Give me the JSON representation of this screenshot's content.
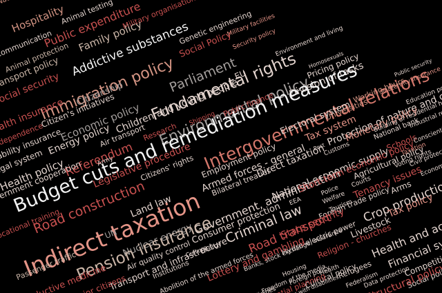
{
  "palette": {
    "background": "#000000",
    "white": "#f2f2f2",
    "light": "#e3d4ce",
    "beige": "#cbb6a8",
    "rose": "#d39483",
    "salmon": "#e49487",
    "coral": "#d2766a",
    "crimson": "#c7504f",
    "red": "#b8403f",
    "grey": "#a39e9c",
    "dim": "#8d7f7b"
  },
  "words": [
    {
      "text": "National organisations",
      "tone": "rose"
    },
    {
      "text": "Hospitality",
      "tone": "rose"
    },
    {
      "text": "Animal testing",
      "tone": "light"
    },
    {
      "text": "Public expenditure",
      "tone": "crimson"
    },
    {
      "text": "Military organisation",
      "tone": "crimson"
    },
    {
      "text": "Family policy",
      "tone": "beige"
    },
    {
      "text": "Communication",
      "tone": "light"
    },
    {
      "text": "Genetic engineering",
      "tone": "light"
    },
    {
      "text": "Military facilities",
      "tone": "salmon"
    },
    {
      "text": "Addictive substances",
      "tone": "white"
    },
    {
      "text": "Social Policy",
      "tone": "crimson"
    },
    {
      "text": "Security policy",
      "tone": "salmon"
    },
    {
      "text": "Animal protection",
      "tone": "beige"
    },
    {
      "text": "Environment and living",
      "tone": "light"
    },
    {
      "text": "Homosexuals",
      "tone": "light"
    },
    {
      "text": "Transport policy",
      "tone": "beige"
    },
    {
      "text": "Immigration policy",
      "tone": "rose"
    },
    {
      "text": "Parliament",
      "tone": "grey"
    },
    {
      "text": "Fundamental rights",
      "tone": "light"
    },
    {
      "text": "Pricing policy",
      "tone": "light"
    },
    {
      "text": "Social security",
      "tone": "crimson"
    },
    {
      "text": "Citizenship",
      "tone": "grey"
    },
    {
      "text": "EU",
      "tone": "light"
    },
    {
      "text": "Division of tasks",
      "tone": "light"
    },
    {
      "text": "Health insurance",
      "tone": "crimson"
    },
    {
      "text": "Public security",
      "tone": "light"
    },
    {
      "text": "Citizen's initiatives",
      "tone": "light"
    },
    {
      "text": "Children and young people",
      "tone": "light"
    },
    {
      "text": "Environmental policy",
      "tone": "grey"
    },
    {
      "text": "Intergovernmental relations",
      "tone": "coral"
    },
    {
      "text": "Maternity insurance",
      "tone": "salmon"
    },
    {
      "text": "Independence",
      "tone": "crimson"
    },
    {
      "text": "Economic policy",
      "tone": "grey"
    },
    {
      "text": "Public finance",
      "tone": "crimson"
    },
    {
      "text": "Working hours",
      "tone": "rose"
    },
    {
      "text": "Protection of nature and cultural heritage",
      "tone": "light"
    },
    {
      "text": "Disability insurance",
      "tone": "light"
    },
    {
      "text": "Energy policy",
      "tone": "light"
    },
    {
      "text": "Shipping",
      "tone": "crimson"
    },
    {
      "text": "Universities",
      "tone": "rose"
    },
    {
      "text": "Education policy",
      "tone": "light"
    },
    {
      "text": "Legal system",
      "tone": "light"
    },
    {
      "text": "Air transport",
      "tone": "light"
    },
    {
      "text": "Budget cuts and remediation measures",
      "tone": "white"
    },
    {
      "text": "Electoral system",
      "tone": "light"
    },
    {
      "text": "Tax system",
      "tone": "salmon"
    },
    {
      "text": "Monetary policy",
      "tone": "salmon"
    },
    {
      "text": "Building of residential housing",
      "tone": "light"
    },
    {
      "text": "Health policy",
      "tone": "light"
    },
    {
      "text": "Referendum",
      "tone": "crimson"
    },
    {
      "text": "Research",
      "tone": "crimson"
    },
    {
      "text": "Army",
      "tone": "light"
    },
    {
      "text": "National bank",
      "tone": "light"
    },
    {
      "text": "Industrial relations",
      "tone": "light"
    },
    {
      "text": "Employment policy",
      "tone": "light"
    },
    {
      "text": "Post",
      "tone": "light"
    },
    {
      "text": "Schools",
      "tone": "crimson"
    },
    {
      "text": "Conscientious objection",
      "tone": "light"
    },
    {
      "text": "Government cooperation",
      "tone": "light"
    },
    {
      "text": "Legislative procedure",
      "tone": "crimson"
    },
    {
      "text": "Armed forces - general",
      "tone": "light"
    },
    {
      "text": "Customs",
      "tone": "light"
    },
    {
      "text": "Taxation",
      "tone": "salmon"
    },
    {
      "text": "Civil protection",
      "tone": "light"
    },
    {
      "text": "Citizens' rights",
      "tone": "light"
    },
    {
      "text": "Direct taxation",
      "tone": "light"
    },
    {
      "text": "National economic supply",
      "tone": "light"
    },
    {
      "text": "Voting rights",
      "tone": "light"
    },
    {
      "text": "Road construction",
      "tone": "crimson"
    },
    {
      "text": "Bilateral treaties",
      "tone": "light"
    },
    {
      "text": "Agricultural policy",
      "tone": "light"
    },
    {
      "text": "Economics",
      "tone": "light"
    },
    {
      "text": "Land law",
      "tone": "light"
    },
    {
      "text": "Government, administration",
      "tone": "light"
    },
    {
      "text": "Short-term economic policy",
      "tone": "crimson"
    },
    {
      "text": "Consumer protection",
      "tone": "light"
    },
    {
      "text": "Police",
      "tone": "light"
    },
    {
      "text": "Tenancy issues",
      "tone": "crimson"
    },
    {
      "text": "Vocational training",
      "tone": "crimson"
    },
    {
      "text": "Indirect taxation",
      "tone": "salmon"
    },
    {
      "text": "Courts",
      "tone": "light"
    },
    {
      "text": "Arms",
      "tone": "light"
    },
    {
      "text": "UN",
      "tone": "grey"
    },
    {
      "text": "EEA",
      "tone": "light"
    },
    {
      "text": "Welfare",
      "tone": "light"
    },
    {
      "text": "Crop production",
      "tone": "light"
    },
    {
      "text": "Tax policy",
      "tone": "salmon"
    },
    {
      "text": "Nuclear energy",
      "tone": "grey"
    },
    {
      "text": "Criminal law",
      "tone": "light"
    },
    {
      "text": "Tourism",
      "tone": "light"
    },
    {
      "text": "Foreign trade policy",
      "tone": "light"
    },
    {
      "text": "Livestock",
      "tone": "light"
    },
    {
      "text": "Energy",
      "tone": "light"
    },
    {
      "text": "Pension insurance",
      "tone": "beige"
    },
    {
      "text": "Road transport",
      "tone": "crimson"
    },
    {
      "text": "State security",
      "tone": "crimson"
    },
    {
      "text": "Health and accident insurance",
      "tone": "light"
    },
    {
      "text": "Passenger traffic",
      "tone": "beige"
    },
    {
      "text": "Air quality control",
      "tone": "light"
    },
    {
      "text": "Hydro-electric power",
      "tone": "light"
    },
    {
      "text": "Religion - churches",
      "tone": "crimson"
    },
    {
      "text": "Financial system",
      "tone": "light"
    },
    {
      "text": "Competition policy",
      "tone": "light"
    },
    {
      "text": "Productive medicine",
      "tone": "crimson"
    },
    {
      "text": "Transport and infrastructure",
      "tone": "light"
    },
    {
      "text": "Banks, stock exchange, insurance",
      "tone": "light"
    },
    {
      "text": "Lottery and gambling",
      "tone": "crimson"
    },
    {
      "text": "Culture",
      "tone": "light"
    },
    {
      "text": "Foreign policy",
      "tone": "light"
    },
    {
      "text": "Institutions",
      "tone": "light"
    },
    {
      "text": "Abolition of the armed forces",
      "tone": "light"
    },
    {
      "text": "Freedom of the media",
      "tone": "light"
    },
    {
      "text": "Housing",
      "tone": "light"
    },
    {
      "text": "Health",
      "tone": "light"
    },
    {
      "text": "Refugees",
      "tone": "light"
    },
    {
      "text": "Social policy",
      "tone": "light"
    },
    {
      "text": "Senior citizens",
      "tone": "crimson"
    },
    {
      "text": "Cultural policy",
      "tone": "light"
    },
    {
      "text": "Structural policy",
      "tone": "crimson"
    },
    {
      "text": "Medicines",
      "tone": "light"
    },
    {
      "text": "Spatial planning",
      "tone": "crimson"
    },
    {
      "text": "Federalism",
      "tone": "light"
    },
    {
      "text": "Data protection",
      "tone": "light"
    },
    {
      "text": "Persons with disabilities",
      "tone": "light"
    }
  ]
}
